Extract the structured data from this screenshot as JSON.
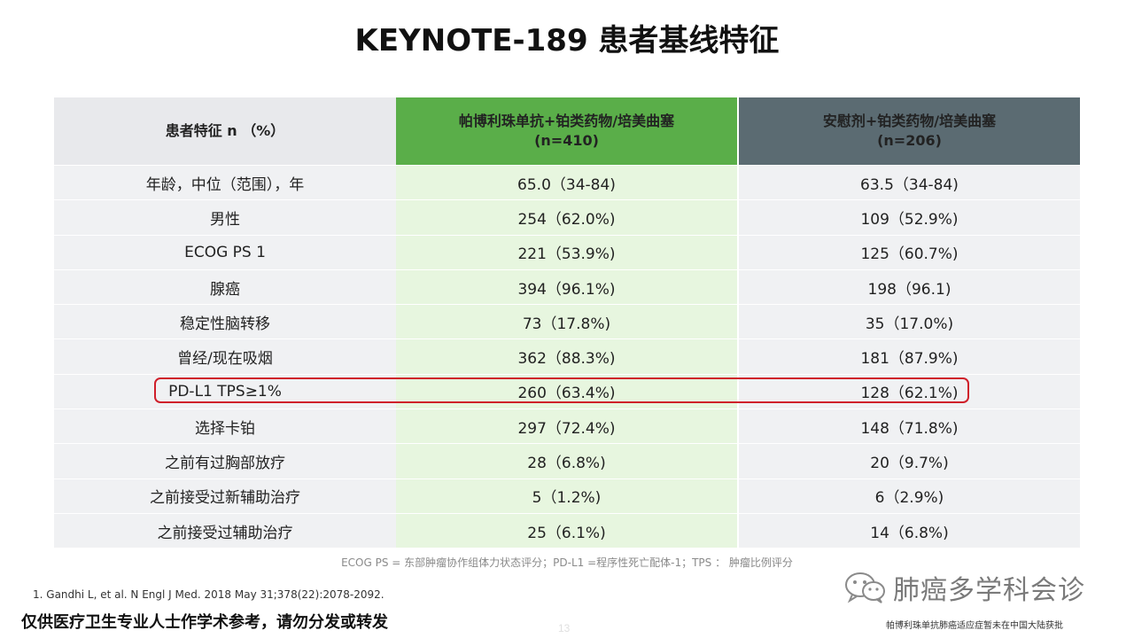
{
  "title": "KEYNOTE-189 患者基线特征",
  "table": {
    "header": {
      "characteristic": "患者特征 n （%）",
      "arm_a_line1": "帕博利珠单抗+铂类药物/培美曲塞",
      "arm_a_line2": "(n=410)",
      "arm_b_line1": "安慰剂+铂类药物/培美曲塞",
      "arm_b_line2": "(n=206)"
    },
    "rows": [
      {
        "label": "年龄，中位（范围），年",
        "a": "65.0（34-84)",
        "b": "63.5（34-84)"
      },
      {
        "label": "男性",
        "a": "254（62.0%)",
        "b": "109（52.9%)"
      },
      {
        "label": "ECOG PS 1",
        "a": "221（53.9%)",
        "b": "125（60.7%)"
      },
      {
        "label": "腺癌",
        "a": "394（96.1%)",
        "b": "198（96.1)"
      },
      {
        "label": "稳定性脑转移",
        "a": "73（17.8%)",
        "b": "35（17.0%)"
      },
      {
        "label": "曾经/现在吸烟",
        "a": "362（88.3%)",
        "b": "181（87.9%)"
      },
      {
        "label": "PD-L1 TPS≥1%",
        "a": "260（63.4%)",
        "b": "128（62.1%)"
      },
      {
        "label": "选择卡铂",
        "a": "297（72.4%)",
        "b": "148（71.8%)"
      },
      {
        "label": "之前有过胸部放疗",
        "a": "28（6.8%)",
        "b": "20（9.7%)"
      },
      {
        "label": "之前接受过新辅助治疗",
        "a": "5（1.2%)",
        "b": "6（2.9%)"
      },
      {
        "label": "之前接受过辅助治疗",
        "a": "25（6.1%)",
        "b": "14（6.8%)"
      }
    ]
  },
  "abbreviations": "ECOG PS = 东部肿瘤协作组体力状态评分；PD-L1 =程序性死亡配体-1；TPS ： 肿瘤比例评分",
  "reference": "1.   Gandhi L, et al. N Engl J Med. 2018 May 31;378(22):2078-2092.",
  "disclaimer": "仅供医疗卫生专业人士作学术参考，请勿分发或转发",
  "page_number": "13",
  "watermark": "肺癌多学科会诊",
  "watermark_icon": "wechat-icon",
  "right_note": "帕博利珠单抗肺癌适应症暂未在中国大陆获批",
  "colors": {
    "arm_a_header": "#5aae49",
    "arm_a_cells": "#e7f6df",
    "arm_b_header": "#5b6b72",
    "highlight_border": "#cf1f2a"
  }
}
